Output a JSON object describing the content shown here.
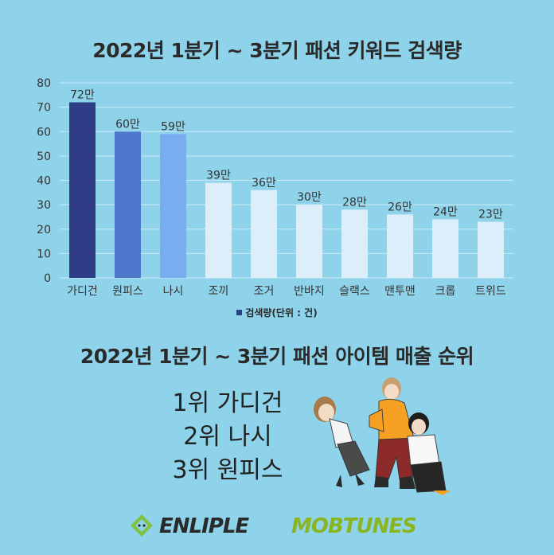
{
  "chart_title": "2022년 1분기 ~ 3분기 패션 키워드 검색량",
  "chart_data": {
    "type": "bar",
    "categories": [
      "가디건",
      "원피스",
      "나시",
      "조끼",
      "조거",
      "반바지",
      "슬랙스",
      "맨투맨",
      "크롭",
      "트위드"
    ],
    "values": [
      72,
      60,
      59,
      39,
      36,
      30,
      28,
      26,
      24,
      23
    ],
    "data_labels": [
      "72만",
      "60만",
      "59만",
      "39만",
      "36만",
      "30만",
      "28만",
      "26만",
      "24만",
      "23만"
    ],
    "ylim": [
      0,
      80
    ],
    "yticks": [
      "0",
      "10",
      "20",
      "30",
      "40",
      "50",
      "60",
      "70",
      "80"
    ],
    "legend": {
      "label": "검색량(단위 : 건)",
      "placement": "bottom"
    },
    "grid": true,
    "colors": [
      "#2f3d86",
      "#4e78cc",
      "#78aef0",
      "#dceefa",
      "#dceefa",
      "#dceefa",
      "#dceefa",
      "#dceefa",
      "#dceefa",
      "#dceefa"
    ]
  },
  "ranking_title": "2022년 1분기 ~ 3분기 패션 아이템 매출 순위",
  "ranking": [
    "1위 가디건",
    "2위 나시",
    "3위 원피스"
  ],
  "logos": {
    "enliple": "ENLIPLE",
    "mobtunes": "MOBTUNES"
  },
  "illustration": "three-women-fashion-illustration",
  "colors": {
    "background": "#8ed3ea",
    "enliple_green": "#7fc243",
    "mobtunes_green": "#8ab523"
  }
}
